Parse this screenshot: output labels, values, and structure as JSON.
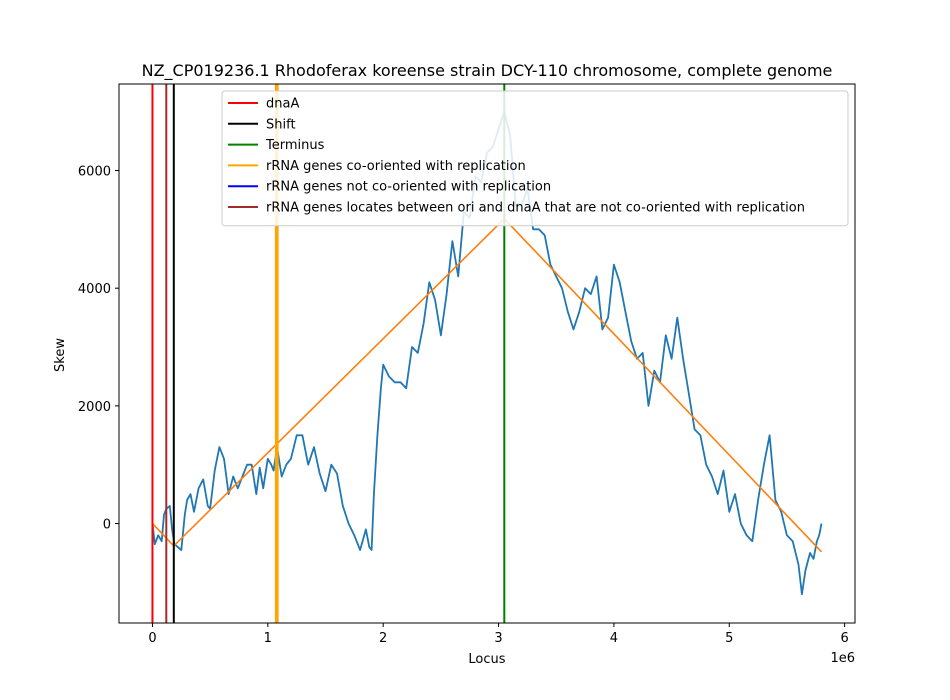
{
  "chart_data": {
    "type": "line",
    "title": "NZ_CP019236.1 Rhodoferax koreense strain DCY-110 chromosome, complete genome",
    "xlabel": "Locus",
    "ylabel": "Skew",
    "x_offset_text": "1e6",
    "xlim": [
      -0.29,
      6.09
    ],
    "ylim": [
      -1690,
      7470
    ],
    "x_ticks": [
      0,
      1,
      2,
      3,
      4,
      5,
      6
    ],
    "x_tick_labels": [
      "0",
      "1",
      "2",
      "3",
      "4",
      "5",
      "6"
    ],
    "y_ticks": [
      0,
      2000,
      4000,
      6000
    ],
    "y_tick_labels": [
      "0",
      "2000",
      "4000",
      "6000"
    ],
    "legend_position": "top-right",
    "colors": {
      "skew": "#1f77b4",
      "fit": "#ff7f0e",
      "dnaA": "#ff0000",
      "shift": "#000000",
      "terminus": "#008000",
      "rrna_co": "#ffa500",
      "rrna_not": "#0000ff",
      "rrna_between": "#a52a2a"
    },
    "legend": [
      {
        "label": "dnaA",
        "color": "#ff0000"
      },
      {
        "label": "Shift",
        "color": "#000000"
      },
      {
        "label": "Terminus",
        "color": "#008000"
      },
      {
        "label": "rRNA genes co-oriented with replication",
        "color": "#ffa500"
      },
      {
        "label": "rRNA genes not co-oriented with replication",
        "color": "#0000ff"
      },
      {
        "label": "rRNA genes locates between ori and dnaA that are not co-oriented with replication",
        "color": "#a52a2a"
      }
    ],
    "vlines": [
      {
        "kind": "dnaA",
        "x": 0.0,
        "color": "#ff0000"
      },
      {
        "kind": "rrna_between",
        "x": 0.12,
        "color": "#a52a2a"
      },
      {
        "kind": "shift",
        "x": 0.185,
        "color": "#000000"
      },
      {
        "kind": "rrna_co",
        "x": 1.07,
        "color": "#ffa500"
      },
      {
        "kind": "rrna_co",
        "x": 1.085,
        "color": "#ffa500"
      },
      {
        "kind": "terminus",
        "x": 3.05,
        "color": "#008000"
      }
    ],
    "fit_line": {
      "x": [
        0.0,
        0.185,
        3.05,
        5.8
      ],
      "y": [
        0,
        -380,
        5180,
        -480
      ]
    },
    "series": [
      {
        "name": "skew",
        "x": [
          0.0,
          0.02,
          0.05,
          0.08,
          0.1,
          0.12,
          0.15,
          0.17,
          0.19,
          0.22,
          0.25,
          0.28,
          0.3,
          0.33,
          0.36,
          0.4,
          0.44,
          0.48,
          0.5,
          0.54,
          0.58,
          0.62,
          0.66,
          0.7,
          0.74,
          0.78,
          0.82,
          0.86,
          0.9,
          0.93,
          0.96,
          1.0,
          1.03,
          1.05,
          1.08,
          1.12,
          1.16,
          1.2,
          1.25,
          1.3,
          1.35,
          1.4,
          1.45,
          1.5,
          1.55,
          1.6,
          1.65,
          1.7,
          1.75,
          1.8,
          1.85,
          1.88,
          1.9,
          1.92,
          1.95,
          1.98,
          2.0,
          2.05,
          2.1,
          2.15,
          2.2,
          2.25,
          2.3,
          2.35,
          2.4,
          2.45,
          2.5,
          2.55,
          2.6,
          2.65,
          2.7,
          2.75,
          2.8,
          2.85,
          2.9,
          2.95,
          3.0,
          3.05,
          3.1,
          3.15,
          3.2,
          3.25,
          3.3,
          3.35,
          3.4,
          3.45,
          3.5,
          3.55,
          3.6,
          3.65,
          3.7,
          3.75,
          3.8,
          3.85,
          3.9,
          3.95,
          4.0,
          4.05,
          4.1,
          4.15,
          4.2,
          4.25,
          4.3,
          4.35,
          4.4,
          4.45,
          4.5,
          4.55,
          4.6,
          4.65,
          4.7,
          4.75,
          4.8,
          4.85,
          4.9,
          4.95,
          5.0,
          5.05,
          5.1,
          5.15,
          5.2,
          5.25,
          5.3,
          5.35,
          5.4,
          5.45,
          5.5,
          5.55,
          5.6,
          5.63,
          5.66,
          5.7,
          5.73,
          5.76,
          5.78,
          5.8
        ],
        "values": [
          0,
          -350,
          -200,
          -300,
          150,
          250,
          300,
          -100,
          -350,
          -400,
          -450,
          150,
          400,
          500,
          200,
          600,
          750,
          300,
          250,
          900,
          1300,
          1100,
          500,
          800,
          600,
          800,
          1000,
          1000,
          500,
          950,
          600,
          1100,
          1000,
          900,
          1300,
          800,
          1000,
          1100,
          1500,
          1500,
          1000,
          1300,
          850,
          550,
          1000,
          850,
          300,
          0,
          -200,
          -450,
          -100,
          -400,
          -450,
          500,
          1500,
          2300,
          2700,
          2500,
          2400,
          2400,
          2300,
          3000,
          2900,
          3400,
          4100,
          3800,
          3200,
          3900,
          4800,
          4200,
          5300,
          5200,
          5900,
          5800,
          6300,
          6400,
          6700,
          7000,
          6600,
          5400,
          5400,
          5700,
          5000,
          5000,
          4900,
          4400,
          4200,
          4000,
          3600,
          3300,
          3600,
          4000,
          3900,
          4200,
          3300,
          3500,
          4400,
          4100,
          3600,
          3100,
          2800,
          2900,
          2000,
          2600,
          2400,
          3200,
          2800,
          3500,
          2800,
          2200,
          1600,
          1500,
          1000,
          800,
          500,
          900,
          200,
          500,
          0,
          -200,
          -300,
          400,
          1000,
          1500,
          400,
          200,
          -200,
          -300,
          -700,
          -1200,
          -800,
          -500,
          -600,
          -300,
          -200,
          0
        ]
      }
    ]
  }
}
